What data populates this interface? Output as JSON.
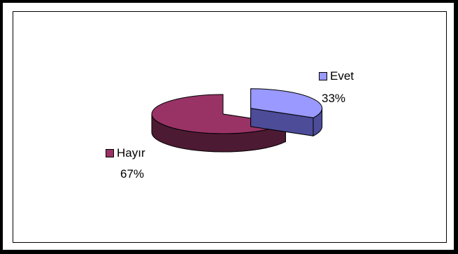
{
  "chart_data": {
    "type": "pie",
    "three_d": true,
    "title": "",
    "slices": [
      {
        "label": "Evet",
        "value": 33,
        "percent_label": "33%",
        "color": "#9999ff",
        "side_color": "#4c4c99",
        "exploded": true
      },
      {
        "label": "Hayır",
        "value": 67,
        "percent_label": "67%",
        "color": "#993366",
        "side_color": "#4d1a33",
        "exploded": false
      }
    ],
    "legend": "none",
    "data_labels": "category-and-percent"
  }
}
